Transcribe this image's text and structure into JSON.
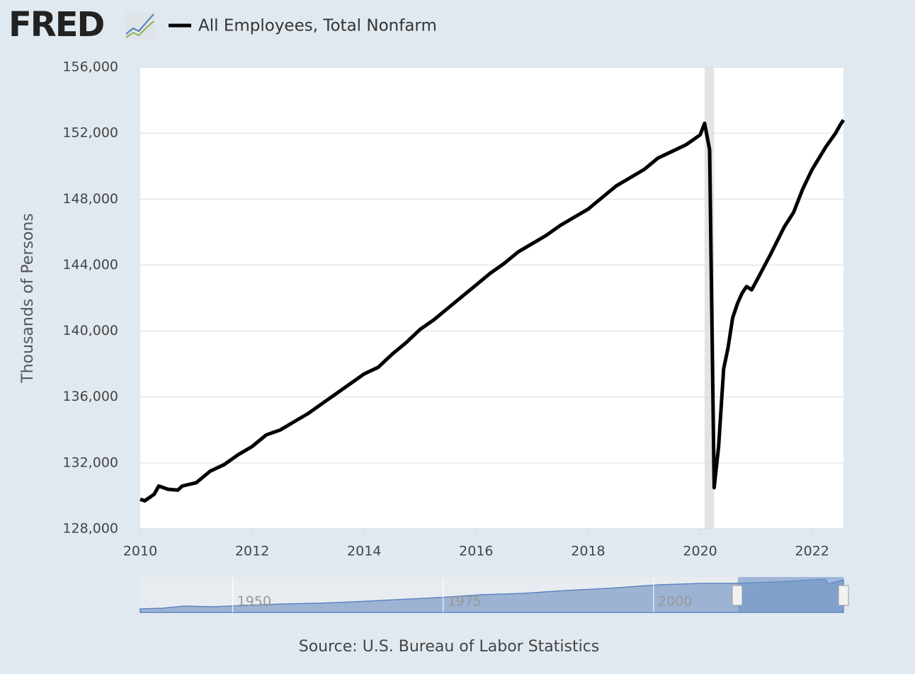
{
  "logo": "FRED",
  "chart_data": {
    "type": "line",
    "ylabel": "Thousands of Persons",
    "source": "Source: U.S. Bureau of Labor Statistics",
    "x": [
      2010.0,
      2010.08,
      2010.25,
      2010.33,
      2010.5,
      2010.67,
      2010.75,
      2011.0,
      2011.25,
      2011.5,
      2011.75,
      2012.0,
      2012.25,
      2012.5,
      2012.75,
      2013.0,
      2013.25,
      2013.5,
      2013.75,
      2014.0,
      2014.25,
      2014.5,
      2014.75,
      2015.0,
      2015.25,
      2015.5,
      2015.75,
      2016.0,
      2016.25,
      2016.5,
      2016.75,
      2017.0,
      2017.25,
      2017.5,
      2017.75,
      2018.0,
      2018.25,
      2018.5,
      2018.75,
      2019.0,
      2019.25,
      2019.5,
      2019.75,
      2020.0,
      2020.08,
      2020.17,
      2020.25,
      2020.33,
      2020.42,
      2020.5,
      2020.58,
      2020.67,
      2020.75,
      2020.83,
      2020.92,
      2021.0,
      2021.25,
      2021.5,
      2021.67,
      2021.83,
      2022.0,
      2022.25,
      2022.42,
      2022.5,
      2022.56
    ],
    "series": [
      {
        "name": "All Employees, Total Nonfarm",
        "color": "#000000",
        "values": [
          129800,
          129700,
          130100,
          130600,
          130400,
          130350,
          130600,
          130800,
          131500,
          131900,
          132500,
          133000,
          133700,
          134000,
          134500,
          135000,
          135600,
          136200,
          136800,
          137400,
          137800,
          138600,
          139300,
          140100,
          140700,
          141400,
          142100,
          142800,
          143500,
          144100,
          144800,
          145300,
          145800,
          146400,
          146900,
          147400,
          148100,
          148800,
          149300,
          149800,
          150500,
          150900,
          151300,
          151900,
          152600,
          151000,
          130500,
          133000,
          137700,
          139000,
          140800,
          141700,
          142300,
          142700,
          142500,
          143000,
          144600,
          146300,
          147200,
          148600,
          149800,
          151200,
          152000,
          152500,
          152800
        ]
      }
    ],
    "recessions": [
      [
        2020.08,
        2020.25
      ]
    ],
    "xlim": [
      2010,
      2022.56
    ],
    "xticks": [
      2010,
      2012,
      2014,
      2016,
      2018,
      2020,
      2022
    ],
    "ylim": [
      128000,
      156000
    ],
    "yticks": [
      {
        "value": 128000,
        "label": "128,000"
      },
      {
        "value": 132000,
        "label": "132,000"
      },
      {
        "value": 136000,
        "label": "136,000"
      },
      {
        "value": 140000,
        "label": "140,000"
      },
      {
        "value": 144000,
        "label": "144,000"
      },
      {
        "value": 148000,
        "label": "148,000"
      },
      {
        "value": 152000,
        "label": "152,000"
      },
      {
        "value": 156000,
        "label": "156,000"
      }
    ],
    "grid": true,
    "navigator": {
      "xlim": [
        1939,
        2022.56
      ],
      "xticks": [
        1950,
        1975,
        2000
      ]
    }
  }
}
